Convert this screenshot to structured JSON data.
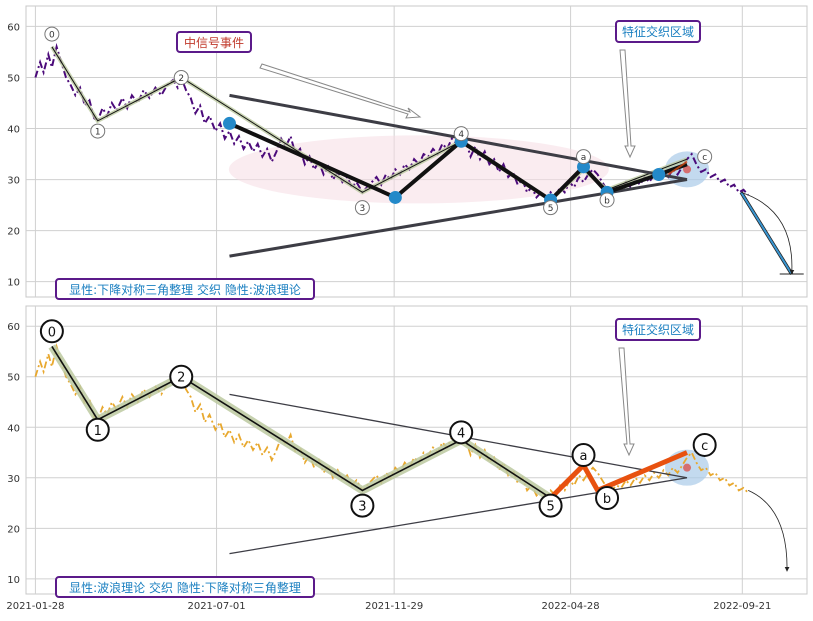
{
  "chart_data": [
    {
      "type": "line",
      "panel": "top",
      "ylim": [
        7,
        64
      ],
      "y_ticks": [
        10,
        20,
        30,
        40,
        50,
        60
      ],
      "x_domain_dates": [
        "2021-01-20",
        "2022-11-15"
      ],
      "grid": true,
      "price_color": "#4b0a7a",
      "price": [
        [
          "2021-01-28",
          50
        ],
        [
          "2021-02-01",
          53
        ],
        [
          "2021-02-04",
          51
        ],
        [
          "2021-02-08",
          54.5
        ],
        [
          "2021-02-11",
          52
        ],
        [
          "2021-02-15",
          56
        ],
        [
          "2021-02-19",
          53
        ],
        [
          "2021-02-23",
          50
        ],
        [
          "2021-02-27",
          48.5
        ],
        [
          "2021-03-03",
          46.5
        ],
        [
          "2021-03-07",
          48
        ],
        [
          "2021-03-11",
          44.5
        ],
        [
          "2021-03-15",
          45.5
        ],
        [
          "2021-03-19",
          42
        ],
        [
          "2021-03-22",
          41.5
        ],
        [
          "2021-03-26",
          44
        ],
        [
          "2021-03-30",
          42.5
        ],
        [
          "2021-04-03",
          45
        ],
        [
          "2021-04-07",
          43.5
        ],
        [
          "2021-04-12",
          46
        ],
        [
          "2021-04-16",
          44
        ],
        [
          "2021-04-20",
          46.5
        ],
        [
          "2021-04-25",
          45
        ],
        [
          "2021-04-30",
          47.5
        ],
        [
          "2021-05-05",
          46
        ],
        [
          "2021-05-10",
          48
        ],
        [
          "2021-05-15",
          46.5
        ],
        [
          "2021-05-20",
          48.5
        ],
        [
          "2021-05-25",
          49.5
        ],
        [
          "2021-05-29",
          48
        ],
        [
          "2021-06-01",
          50
        ],
        [
          "2021-06-05",
          47.5
        ],
        [
          "2021-06-09",
          46
        ],
        [
          "2021-06-13",
          43
        ],
        [
          "2021-06-17",
          44.5
        ],
        [
          "2021-06-21",
          41
        ],
        [
          "2021-06-25",
          42.5
        ],
        [
          "2021-06-30",
          39.5
        ],
        [
          "2021-07-04",
          41
        ],
        [
          "2021-07-08",
          38
        ],
        [
          "2021-07-12",
          39.5
        ],
        [
          "2021-07-16",
          37
        ],
        [
          "2021-07-20",
          38.5
        ],
        [
          "2021-07-24",
          36
        ],
        [
          "2021-07-28",
          37.5
        ],
        [
          "2021-08-01",
          35.5
        ],
        [
          "2021-08-05",
          37
        ],
        [
          "2021-08-09",
          34.5
        ],
        [
          "2021-08-13",
          36
        ],
        [
          "2021-08-17",
          33.5
        ],
        [
          "2021-08-21",
          35.5
        ],
        [
          "2021-08-25",
          38
        ],
        [
          "2021-08-29",
          36.5
        ],
        [
          "2021-09-02",
          38.5
        ],
        [
          "2021-09-06",
          35
        ],
        [
          "2021-09-10",
          36
        ],
        [
          "2021-09-14",
          33
        ],
        [
          "2021-09-18",
          34.5
        ],
        [
          "2021-09-22",
          32
        ],
        [
          "2021-09-26",
          33.5
        ],
        [
          "2021-09-30",
          31
        ],
        [
          "2021-10-04",
          32.5
        ],
        [
          "2021-10-08",
          30
        ],
        [
          "2021-10-12",
          31.5
        ],
        [
          "2021-10-16",
          29.5
        ],
        [
          "2021-10-20",
          30.5
        ],
        [
          "2021-10-24",
          28.5
        ],
        [
          "2021-10-28",
          29.5
        ],
        [
          "2021-11-02",
          27.5
        ],
        [
          "2021-11-06",
          28.5
        ],
        [
          "2021-11-10",
          29.5
        ],
        [
          "2021-11-14",
          30.5
        ],
        [
          "2021-11-18",
          29
        ],
        [
          "2021-11-22",
          31
        ],
        [
          "2021-11-26",
          30
        ],
        [
          "2021-11-30",
          32
        ],
        [
          "2021-12-04",
          31
        ],
        [
          "2021-12-08",
          33
        ],
        [
          "2021-12-12",
          32
        ],
        [
          "2021-12-16",
          34
        ],
        [
          "2021-12-20",
          33
        ],
        [
          "2021-12-24",
          35
        ],
        [
          "2021-12-28",
          34.5
        ],
        [
          "2022-01-01",
          36
        ],
        [
          "2022-01-05",
          35
        ],
        [
          "2022-01-09",
          37
        ],
        [
          "2022-01-13",
          36
        ],
        [
          "2022-01-17",
          38
        ],
        [
          "2022-01-21",
          37
        ],
        [
          "2022-01-25",
          36.5
        ],
        [
          "2022-01-29",
          37.5
        ],
        [
          "2022-02-02",
          34.5
        ],
        [
          "2022-02-06",
          36.5
        ],
        [
          "2022-02-10",
          34
        ],
        [
          "2022-02-14",
          35.5
        ],
        [
          "2022-02-18",
          33
        ],
        [
          "2022-02-22",
          34
        ],
        [
          "2022-02-26",
          31.5
        ],
        [
          "2022-03-02",
          33
        ],
        [
          "2022-03-06",
          30.5
        ],
        [
          "2022-03-10",
          31.5
        ],
        [
          "2022-03-14",
          29
        ],
        [
          "2022-03-18",
          30
        ],
        [
          "2022-03-22",
          27.5
        ],
        [
          "2022-03-26",
          28.5
        ],
        [
          "2022-03-30",
          26.5
        ],
        [
          "2022-04-03",
          27.5
        ],
        [
          "2022-04-07",
          26
        ],
        [
          "2022-04-11",
          27.5
        ],
        [
          "2022-04-15",
          26.5
        ],
        [
          "2022-04-19",
          28.5
        ],
        [
          "2022-04-23",
          27.5
        ],
        [
          "2022-04-27",
          29.5
        ],
        [
          "2022-05-01",
          28.5
        ],
        [
          "2022-05-05",
          30.5
        ],
        [
          "2022-05-09",
          29.5
        ],
        [
          "2022-05-13",
          31
        ],
        [
          "2022-05-17",
          32
        ],
        [
          "2022-05-21",
          31
        ],
        [
          "2022-05-25",
          29.5
        ],
        [
          "2022-05-29",
          28
        ],
        [
          "2022-06-02",
          27.5
        ],
        [
          "2022-06-06",
          28.5
        ],
        [
          "2022-06-10",
          28
        ],
        [
          "2022-06-14",
          29.5
        ],
        [
          "2022-06-18",
          28.5
        ],
        [
          "2022-06-22",
          30
        ],
        [
          "2022-06-26",
          29
        ],
        [
          "2022-06-30",
          30.5
        ],
        [
          "2022-07-04",
          29.5
        ],
        [
          "2022-07-08",
          31
        ],
        [
          "2022-07-12",
          30
        ],
        [
          "2022-07-16",
          31.5
        ],
        [
          "2022-07-20",
          30.5
        ],
        [
          "2022-07-24",
          32
        ],
        [
          "2022-07-28",
          31
        ],
        [
          "2022-08-01",
          32.5
        ],
        [
          "2022-08-05",
          34
        ],
        [
          "2022-08-09",
          35
        ],
        [
          "2022-08-13",
          33
        ],
        [
          "2022-08-17",
          31.5
        ],
        [
          "2022-08-21",
          32
        ],
        [
          "2022-08-25",
          30.5
        ],
        [
          "2022-08-29",
          31
        ],
        [
          "2022-09-02",
          29.5
        ],
        [
          "2022-09-06",
          30
        ],
        [
          "2022-09-10",
          28.5
        ],
        [
          "2022-09-14",
          29
        ],
        [
          "2022-09-18",
          27.5
        ],
        [
          "2022-09-22",
          28
        ],
        [
          "2022-09-26",
          27
        ]
      ],
      "zigzag": [
        [
          "2021-02-11",
          56
        ],
        [
          "2021-03-22",
          41.5
        ],
        [
          "2021-06-01",
          50
        ],
        [
          "2021-11-02",
          27.5
        ],
        [
          "2022-01-25",
          37.5
        ],
        [
          "2022-04-11",
          26
        ],
        [
          "2022-05-09",
          32
        ],
        [
          "2022-05-29",
          28
        ],
        [
          "2022-08-05",
          34
        ]
      ],
      "wave_thick_line": [
        [
          "2021-07-12",
          41
        ],
        [
          "2021-11-30",
          26.5
        ],
        [
          "2022-01-25",
          37.5
        ],
        [
          "2022-04-11",
          26
        ],
        [
          "2022-05-09",
          32.5
        ],
        [
          "2022-05-29",
          27.5
        ],
        [
          "2022-07-12",
          31
        ],
        [
          "2022-08-05",
          33
        ]
      ],
      "blue_points": [
        [
          "2021-07-12",
          41
        ],
        [
          "2021-11-30",
          26.5
        ],
        [
          "2022-01-25",
          37.5
        ],
        [
          "2022-04-11",
          26
        ],
        [
          "2022-05-09",
          32.5
        ],
        [
          "2022-05-29",
          27.5
        ],
        [
          "2022-07-12",
          31
        ]
      ],
      "triangle_upper": [
        [
          "2021-07-12",
          46.5
        ],
        [
          "2022-08-05",
          30
        ]
      ],
      "triangle_lower": [
        [
          "2021-07-12",
          15
        ],
        [
          "2022-08-05",
          30
        ]
      ],
      "wave_labels": [
        {
          "text": "0",
          "date": "2021-02-11",
          "y": 58.5
        },
        {
          "text": "1",
          "date": "2021-03-22",
          "y": 39.5
        },
        {
          "text": "2",
          "date": "2021-06-01",
          "y": 50
        },
        {
          "text": "3",
          "date": "2021-11-02",
          "y": 24.5
        },
        {
          "text": "4",
          "date": "2022-01-25",
          "y": 39
        },
        {
          "text": "5",
          "date": "2022-04-11",
          "y": 24.5
        },
        {
          "text": "a",
          "date": "2022-05-09",
          "y": 34.5
        },
        {
          "text": "b",
          "date": "2022-05-29",
          "y": 26
        },
        {
          "text": "c",
          "date": "2022-08-20",
          "y": 34.5
        }
      ],
      "forecast_line": [
        [
          "2022-09-20",
          27.5
        ],
        [
          "2022-11-02",
          11.5
        ]
      ],
      "event_label": "中信号事件",
      "zone_label": "特征交织区域",
      "legend_text": "显性:下降对称三角整理 交织 隐性:波浪理论"
    },
    {
      "type": "line",
      "panel": "bottom",
      "ylim": [
        7,
        64
      ],
      "y_ticks": [
        10,
        20,
        30,
        40,
        50,
        60
      ],
      "x_ticks": [
        "2021-01-28",
        "2021-07-01",
        "2021-11-29",
        "2022-04-28",
        "2022-09-21"
      ],
      "grid": true,
      "price_color": "#e8a82e",
      "zigzag": [
        [
          "2021-02-11",
          56
        ],
        [
          "2021-03-22",
          41.5
        ],
        [
          "2021-06-01",
          50
        ],
        [
          "2021-11-02",
          27.5
        ],
        [
          "2022-01-25",
          37.5
        ],
        [
          "2022-04-11",
          26
        ]
      ],
      "orange_wave": [
        [
          "2022-04-11",
          26
        ],
        [
          "2022-05-09",
          32.5
        ],
        [
          "2022-05-21",
          27.5
        ],
        [
          "2022-08-05",
          35
        ]
      ],
      "triangle_upper": [
        [
          "2021-07-12",
          46.5
        ],
        [
          "2022-08-05",
          30
        ]
      ],
      "triangle_lower": [
        [
          "2021-07-12",
          15
        ],
        [
          "2022-08-05",
          30
        ]
      ],
      "wave_labels": [
        {
          "text": "0",
          "date": "2021-02-11",
          "y": 59
        },
        {
          "text": "1",
          "date": "2021-03-22",
          "y": 39.5
        },
        {
          "text": "2",
          "date": "2021-06-01",
          "y": 50
        },
        {
          "text": "3",
          "date": "2021-11-02",
          "y": 24.5
        },
        {
          "text": "4",
          "date": "2022-01-25",
          "y": 39
        },
        {
          "text": "5",
          "date": "2022-04-11",
          "y": 24.5
        },
        {
          "text": "a",
          "date": "2022-05-09",
          "y": 34.5
        },
        {
          "text": "b",
          "date": "2022-05-29",
          "y": 26
        },
        {
          "text": "c",
          "date": "2022-08-20",
          "y": 36.5
        }
      ],
      "zone_label": "特征交织区域",
      "legend_text": "显性:波浪理论 交织 隐性:下降对称三角整理"
    }
  ],
  "colors": {
    "grid": "#d0d0d0",
    "frame": "#c8c8c8",
    "label_border": "#5b1a8a",
    "label_text_blue": "#1a7fc0",
    "label_text_red": "#c0392b",
    "blue_point": "#2389c9",
    "orange_wave": "#e8510f",
    "zigzag_halo": "#bcc9a0",
    "forecast": "#3a95d0"
  }
}
